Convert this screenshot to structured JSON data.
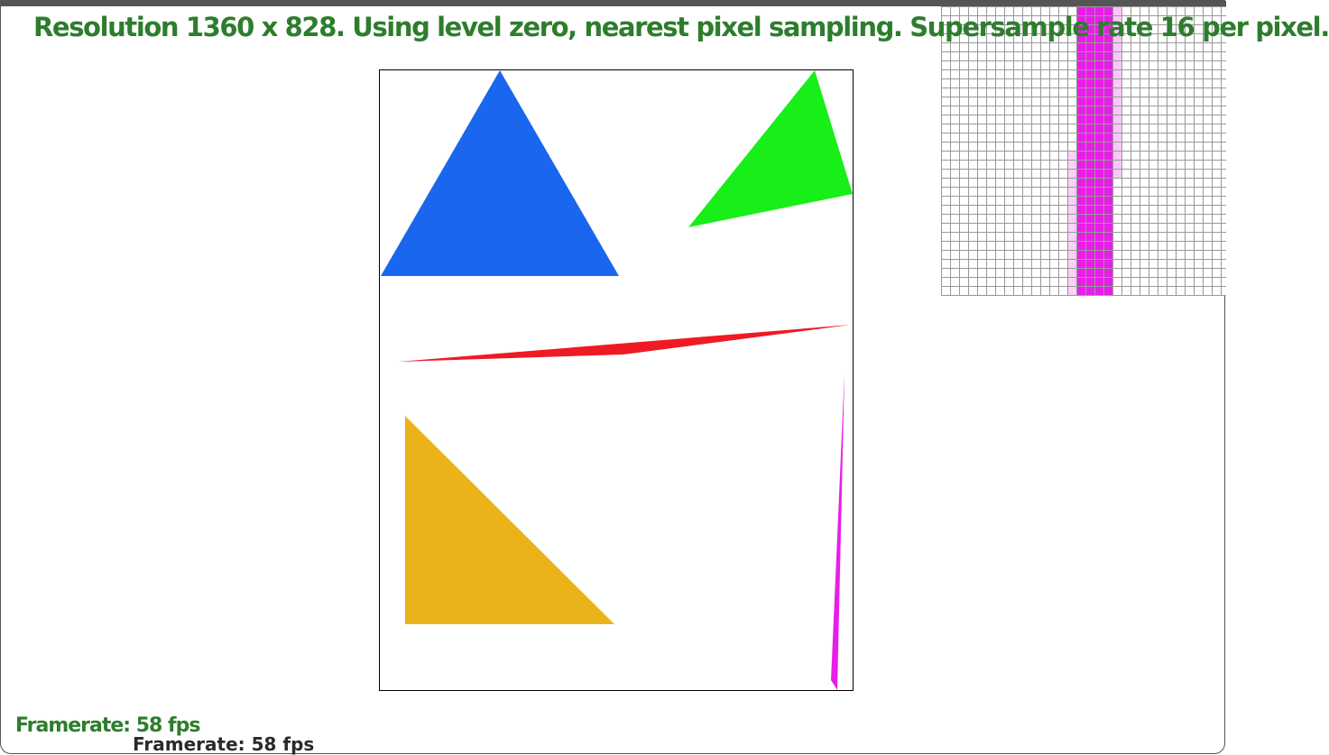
{
  "window": {
    "status_text": "Resolution 1360 x 828. Using level zero, nearest pixel sampling. Supersample rate 16 per pixel.",
    "framerate_text": "Framerate: 58 fps",
    "ghost_text": "Framerate: 58 fps"
  },
  "canvas": {
    "triangles": [
      {
        "name": "blue-triangle",
        "color": "#1a66ee"
      },
      {
        "name": "green-triangle",
        "color": "#18ee18"
      },
      {
        "name": "red-sliver-triangle",
        "color": "#ee1a24"
      },
      {
        "name": "yellow-triangle",
        "color": "#ebb31a"
      },
      {
        "name": "magenta-sliver-triangle",
        "color": "#e81ee8"
      }
    ]
  },
  "zoom_view": {
    "grid_color": "#999999",
    "fill_color": "#e81ee8"
  }
}
